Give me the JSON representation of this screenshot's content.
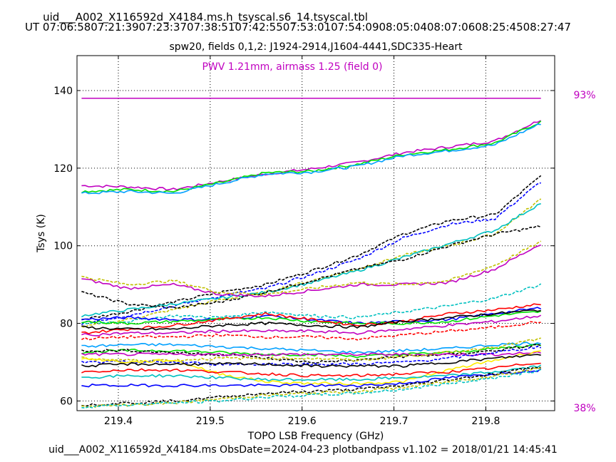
{
  "header": {
    "filename": "uid___A002_X116592d_X4184.ms.h_tsyscal.s6_14.tsyscal.tbl",
    "ut_line": "UT 07:06:5807:21:3907:23:3707:38:5107:42:5507:53:0107:54:0908:05:0408:07:0608:25:4508:27:47"
  },
  "footer": {
    "text": "uid___A002_X116592d_X4184.ms  ObsDate=2024-04-23   plotbandpass v1.102 = 2018/01/21 14:45:41"
  },
  "chart_data": {
    "type": "line",
    "title": "spw20,  fields 0,1,2: J1924-2914,J1604-4441,SDC335-Heart",
    "annotation": "PWV 1.21mm, airmass 1.25 (field 0)",
    "xlabel": "TOPO LSB Frequency (GHz)",
    "ylabel": "Tsys (K)",
    "xlim": [
      219.355,
      219.875
    ],
    "ylim": [
      57.5,
      149
    ],
    "xticks": [
      219.4,
      219.5,
      219.6,
      219.7,
      219.8
    ],
    "xtick_labels": [
      "219.4",
      "219.5",
      "219.6",
      "219.7",
      "219.8"
    ],
    "yticks": [
      60,
      80,
      100,
      120,
      140
    ],
    "ytick_labels": [
      "60",
      "80",
      "100",
      "120",
      "140"
    ],
    "grid": true,
    "annotation_color": "#c000c0",
    "transmission": {
      "line_value": 138,
      "top_label": "93%",
      "bottom_label": "38%",
      "color": "#c000c0"
    },
    "x": [
      219.36,
      219.41,
      219.46,
      219.51,
      219.56,
      219.61,
      219.66,
      219.71,
      219.76,
      219.81,
      219.86
    ],
    "series": [
      {
        "color": "#c000c0",
        "style": "solid",
        "values": [
          115.5,
          115.2,
          114.5,
          116.5,
          118.5,
          119.8,
          121.5,
          124,
          125.5,
          127,
          132.5
        ]
      },
      {
        "color": "#00e000",
        "style": "solid",
        "values": [
          114,
          114.5,
          114,
          116.2,
          118.8,
          119.2,
          121,
          123.5,
          124.8,
          126.5,
          132
        ]
      },
      {
        "color": "#00a0ff",
        "style": "solid",
        "values": [
          113.5,
          114,
          113.5,
          116,
          118.5,
          119,
          120.5,
          123.2,
          124.5,
          126,
          131.5
        ]
      },
      {
        "color": "#000000",
        "style": "dashed",
        "values": [
          81,
          83,
          85.5,
          88,
          90,
          93.5,
          97.5,
          103,
          106.5,
          108,
          118
        ]
      },
      {
        "color": "#0000ff",
        "style": "dashed",
        "values": [
          80,
          82,
          84.5,
          87,
          89,
          92.5,
          96.5,
          102,
          105.5,
          107,
          116.5
        ]
      },
      {
        "color": "#c0c000",
        "style": "dashed",
        "values": [
          79,
          81,
          83.5,
          86,
          88,
          91,
          94,
          97.5,
          100,
          103,
          112
        ]
      },
      {
        "color": "#00c0c0",
        "style": "solid",
        "values": [
          82,
          83.5,
          85,
          86.5,
          88,
          90.5,
          93.5,
          97,
          100.5,
          104,
          111
        ]
      },
      {
        "color": "#000000",
        "style": "dashed",
        "values": [
          88,
          85,
          84,
          85.5,
          88,
          91,
          94,
          96.5,
          100,
          103,
          105
        ]
      },
      {
        "color": "#c000c0",
        "style": "solid",
        "values": [
          91.5,
          89,
          90,
          87.5,
          87,
          88.5,
          90,
          90,
          90.5,
          94,
          100.5
        ]
      },
      {
        "color": "#c0c000",
        "style": "dashed",
        "values": [
          92,
          90,
          91,
          88,
          87.5,
          89,
          90.5,
          90,
          91,
          95,
          101
        ]
      },
      {
        "color": "#00c0c0",
        "style": "dashed",
        "values": [
          80,
          80.5,
          82,
          81.5,
          83,
          82,
          81.5,
          83,
          84.5,
          86.5,
          90
        ]
      },
      {
        "color": "#0000ff",
        "style": "solid",
        "values": [
          81,
          81.5,
          81,
          81,
          82,
          81,
          80,
          80.5,
          81,
          82.5,
          84
        ]
      },
      {
        "color": "#00e000",
        "style": "solid",
        "values": [
          80.5,
          80,
          80.5,
          81,
          81.5,
          80.5,
          80,
          80,
          80.5,
          82,
          83
        ]
      },
      {
        "color": "#ff0000",
        "style": "solid",
        "values": [
          77.5,
          78.5,
          79.5,
          81,
          82.5,
          81,
          79.5,
          80.5,
          82.5,
          83.5,
          85
        ]
      },
      {
        "color": "#000000",
        "style": "solid",
        "values": [
          79,
          78.5,
          78.5,
          79.5,
          80,
          79.5,
          79,
          80.5,
          81.5,
          82.5,
          83.5
        ]
      },
      {
        "color": "#c000c0",
        "style": "solid",
        "values": [
          77,
          77.5,
          77.5,
          78,
          78,
          78,
          77.5,
          78.5,
          79.5,
          80.5,
          82
        ]
      },
      {
        "color": "#ff0000",
        "style": "dashed",
        "values": [
          76,
          76.5,
          76.5,
          77,
          76.5,
          76.5,
          76,
          77,
          78,
          79,
          80.5
        ]
      },
      {
        "color": "#00a0ff",
        "style": "solid",
        "values": [
          74,
          74.5,
          74.5,
          74,
          73.5,
          73,
          72.5,
          73,
          73.5,
          74.5,
          75
        ]
      },
      {
        "color": "#00e000",
        "style": "solid",
        "values": [
          72.5,
          73,
          73,
          72.5,
          72,
          72,
          71.5,
          72,
          72.5,
          73.5,
          74.5
        ]
      },
      {
        "color": "#000000",
        "style": "dashed",
        "values": [
          73,
          73,
          72.5,
          72,
          71,
          70,
          70.5,
          71.5,
          72,
          73,
          74.5
        ]
      },
      {
        "color": "#c000c0",
        "style": "solid",
        "values": [
          72,
          72,
          72,
          72,
          72,
          72,
          72,
          72,
          72,
          72,
          72.5
        ]
      },
      {
        "color": "#c0c000",
        "style": "dashed",
        "values": [
          71,
          70.5,
          70.5,
          71,
          71,
          71,
          70.5,
          71.5,
          72.5,
          74,
          76
        ]
      },
      {
        "color": "#0000ff",
        "style": "dashed",
        "values": [
          70,
          70,
          70,
          69.5,
          69.5,
          69.5,
          69.5,
          70,
          71,
          72.5,
          74
        ]
      },
      {
        "color": "#ffee00",
        "style": "solid",
        "values": [
          71,
          70,
          70.5,
          67,
          65,
          64.5,
          64.5,
          65,
          68,
          70.5,
          73
        ]
      },
      {
        "color": "#000000",
        "style": "solid",
        "values": [
          69,
          69.5,
          69.5,
          69.5,
          69.5,
          69,
          69,
          69,
          70,
          71,
          72
        ]
      },
      {
        "color": "#ff0000",
        "style": "solid",
        "values": [
          67.5,
          68,
          68,
          67.5,
          67,
          66.5,
          66.5,
          67,
          67.5,
          68.5,
          70
        ]
      },
      {
        "color": "#00c0c0",
        "style": "solid",
        "values": [
          66,
          66.5,
          66.5,
          66,
          65.5,
          65.5,
          65.5,
          66,
          66.5,
          67.5,
          69
        ]
      },
      {
        "color": "#0000ff",
        "style": "solid",
        "values": [
          64,
          64,
          64,
          64,
          64,
          64,
          64,
          64.5,
          66,
          67,
          68
        ]
      },
      {
        "color": "#000000",
        "style": "dashed",
        "values": [
          59,
          59.5,
          60,
          61,
          62,
          62.5,
          63,
          64,
          65.5,
          67,
          69
        ]
      },
      {
        "color": "#c0c000",
        "style": "dashed",
        "values": [
          58.5,
          59,
          59.5,
          60.5,
          61.5,
          62,
          62.5,
          63.5,
          65,
          66.5,
          68.5
        ]
      },
      {
        "color": "#00c0c0",
        "style": "dashed",
        "values": [
          58.5,
          59,
          59.5,
          60,
          61,
          61.5,
          62,
          63,
          64.5,
          66,
          68
        ]
      }
    ]
  }
}
